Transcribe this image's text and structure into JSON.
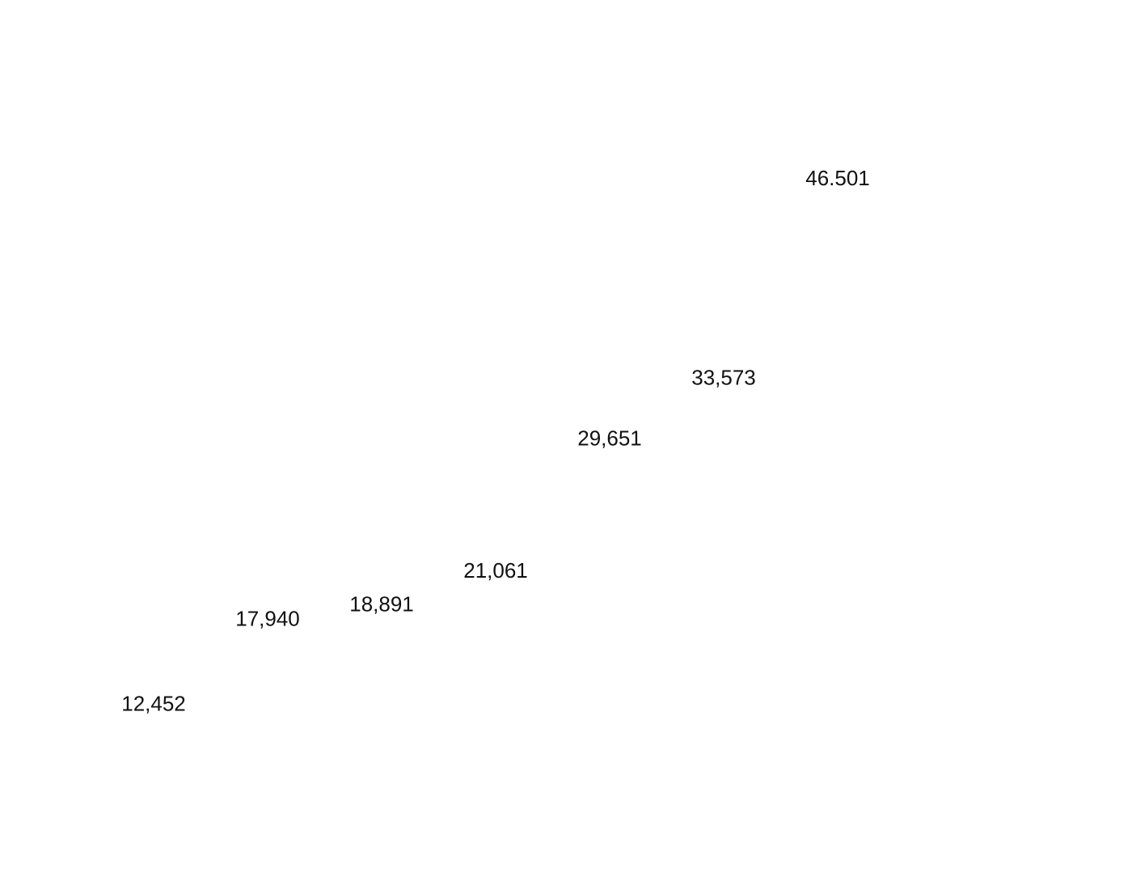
{
  "chart_data": {
    "type": "line",
    "title": "",
    "xlabel": "",
    "ylabel": "",
    "ylim": [
      0,
      50000
    ],
    "grid": false,
    "series": [
      {
        "values": [
          12452,
          17940,
          18891,
          21061,
          29651,
          33573,
          46501
        ],
        "data_labels": [
          "12,452",
          "17,940",
          "18,891",
          "21,061",
          "29,651",
          "33,573",
          "46.501"
        ]
      }
    ]
  }
}
